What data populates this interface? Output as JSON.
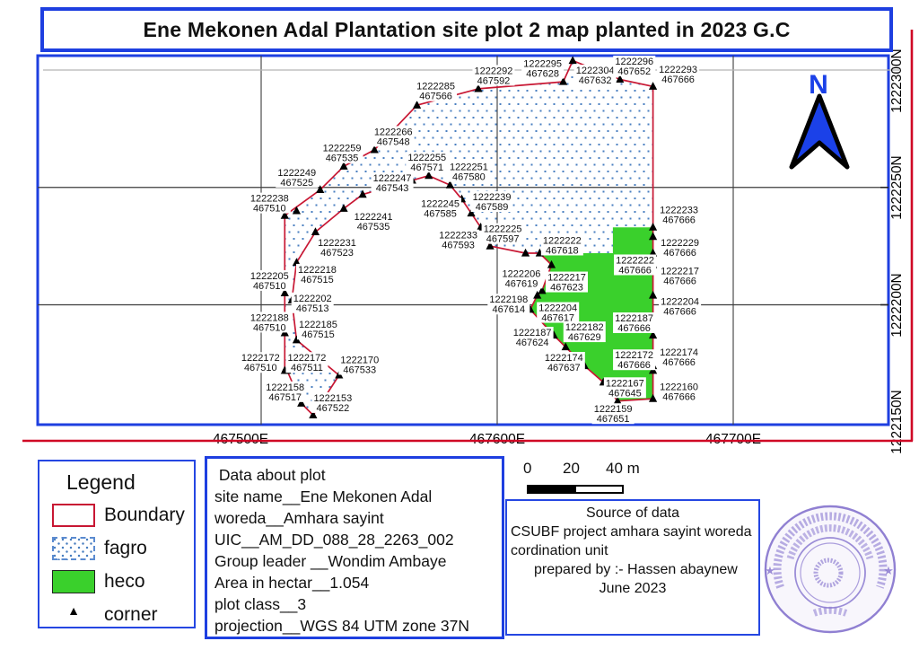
{
  "title": "Ene Mekonen Adal Plantation site plot 2 map planted in 2023 G.C",
  "map": {
    "x_axis_ticks": [
      {
        "label": "467500E",
        "e": 467500,
        "label_dx": -23
      },
      {
        "label": "467600E",
        "e": 467600,
        "label_dx": 0
      },
      {
        "label": "467700E",
        "e": 467700,
        "label_dx": 0
      }
    ],
    "y_axis_ticks": [
      {
        "label": "1222300N",
        "n": 1222300,
        "label_cy": 90
      },
      {
        "label": "1222250N",
        "n": 1222250,
        "label_cy": 209
      },
      {
        "label": "1222200N",
        "n": 1222200,
        "label_cy": 340
      },
      {
        "label": "1222150N",
        "n": 1222150,
        "label_cy": 470
      }
    ],
    "north_arrow_label": "N",
    "corner_labels": [
      [
        1222238,
        467510,
        -17,
        -14
      ],
      [
        1222249,
        467525,
        -26,
        -14
      ],
      [
        1222259,
        467535,
        -2,
        -15
      ],
      [
        1222266,
        467548,
        21,
        -15
      ],
      [
        1222285,
        467566,
        21,
        -16
      ],
      [
        1222292,
        467592,
        17,
        -15
      ],
      [
        1222295,
        467628,
        -23,
        -15
      ],
      [
        1222304,
        467632,
        25,
        16
      ],
      [
        1222296,
        467652,
        16,
        -15
      ],
      [
        1222293,
        467666,
        28,
        -14
      ],
      [
        1222233,
        467666,
        29,
        -14
      ],
      [
        1222229,
        467666,
        30,
        12
      ],
      [
        1222222,
        467666,
        -20,
        13
      ],
      [
        1222217,
        467666,
        30,
        12
      ],
      [
        1222204,
        467666,
        30,
        12
      ],
      [
        1222187,
        467666,
        -21,
        -14
      ],
      [
        1222174,
        467666,
        29,
        -10
      ],
      [
        1222172,
        467666,
        -21,
        -12
      ],
      [
        1222160,
        467666,
        29,
        -8
      ],
      [
        1222159,
        467651,
        -5,
        14
      ],
      [
        1222167,
        467645,
        24,
        6
      ],
      [
        1222174,
        467637,
        -23,
        -4
      ],
      [
        1222182,
        467629,
        21,
        -17
      ],
      [
        1222187,
        467624,
        -24,
        2
      ],
      [
        1222198,
        467614,
        -24,
        -6
      ],
      [
        1222204,
        467617,
        23,
        19
      ],
      [
        1222206,
        467619,
        -23,
        -14
      ],
      [
        1222217,
        467623,
        17,
        19
      ],
      [
        1222222,
        467618,
        25,
        -9
      ],
      [
        1222225,
        467597,
        14,
        -14
      ],
      [
        1222233,
        467593,
        -25,
        14
      ],
      [
        1222239,
        467589,
        23,
        -13
      ],
      [
        1222245,
        467585,
        -24,
        10
      ],
      [
        1222251,
        467580,
        21,
        -15
      ],
      [
        1222255,
        467571,
        -2,
        -15
      ],
      [
        1222247,
        467543,
        33,
        -13
      ],
      [
        1222241,
        467535,
        33,
        14
      ],
      [
        1222231,
        467523,
        24,
        17
      ],
      [
        1222218,
        467515,
        23,
        13
      ],
      [
        1222205,
        467510,
        -17,
        -14
      ],
      [
        1222202,
        467513,
        23,
        3
      ],
      [
        1222188,
        467510,
        -17,
        -12
      ],
      [
        1222185,
        467515,
        24,
        -12
      ],
      [
        1222172,
        467510,
        -27,
        -9
      ],
      [
        1222172,
        467511,
        22,
        -9
      ],
      [
        1222170,
        467533,
        23,
        -12
      ],
      [
        1222158,
        467517,
        -18,
        -13
      ],
      [
        1222153,
        467522,
        22,
        -14
      ]
    ],
    "extra_corner_triangles_en": [
      [
        467564,
        1222253
      ],
      [
        467612,
        1222222
      ],
      [
        467515,
        1222240
      ]
    ],
    "boundary_vertices_en": [
      [
        467510,
        1222238
      ],
      [
        467525,
        1222249
      ],
      [
        467535,
        1222259
      ],
      [
        467548,
        1222266
      ],
      [
        467566,
        1222285
      ],
      [
        467592,
        1222292
      ],
      [
        467628,
        1222295
      ],
      [
        467632,
        1222304
      ],
      [
        467652,
        1222296
      ],
      [
        467666,
        1222293
      ],
      [
        467666,
        1222233
      ],
      [
        467666,
        1222229
      ],
      [
        467666,
        1222222
      ],
      [
        467666,
        1222217
      ],
      [
        467666,
        1222204
      ],
      [
        467666,
        1222187
      ],
      [
        467666,
        1222174
      ],
      [
        467666,
        1222172
      ],
      [
        467666,
        1222160
      ],
      [
        467651,
        1222159
      ],
      [
        467645,
        1222167
      ],
      [
        467637,
        1222174
      ],
      [
        467629,
        1222182
      ],
      [
        467624,
        1222187
      ],
      [
        467614,
        1222198
      ],
      [
        467617,
        1222204
      ],
      [
        467619,
        1222206
      ],
      [
        467623,
        1222217
      ],
      [
        467618,
        1222222
      ],
      [
        467612,
        1222222
      ],
      [
        467597,
        1222225
      ],
      [
        467593,
        1222233
      ],
      [
        467589,
        1222239
      ],
      [
        467585,
        1222245
      ],
      [
        467580,
        1222251
      ],
      [
        467571,
        1222255
      ],
      [
        467564,
        1222253
      ],
      [
        467543,
        1222247
      ],
      [
        467535,
        1222241
      ],
      [
        467523,
        1222231
      ],
      [
        467515,
        1222218
      ],
      [
        467513,
        1222202
      ],
      [
        467515,
        1222185
      ],
      [
        467533,
        1222170
      ],
      [
        467522,
        1222153
      ],
      [
        467517,
        1222158
      ],
      [
        467511,
        1222172
      ],
      [
        467510,
        1222172
      ],
      [
        467510,
        1222188
      ],
      [
        467510,
        1222205
      ]
    ],
    "heco_vertices_en": [
      [
        467618,
        1222222
      ],
      [
        467649,
        1222222
      ],
      [
        467649,
        1222233
      ],
      [
        467666,
        1222233
      ],
      [
        467666,
        1222160
      ],
      [
        467651,
        1222159
      ],
      [
        467645,
        1222167
      ],
      [
        467637,
        1222174
      ],
      [
        467629,
        1222182
      ],
      [
        467624,
        1222187
      ],
      [
        467614,
        1222198
      ],
      [
        467617,
        1222204
      ],
      [
        467619,
        1222206
      ],
      [
        467623,
        1222217
      ]
    ],
    "colors": {
      "frame_blue": "#1e3fe0",
      "boundary_red": "#c81733",
      "fagro_dot_blue": "#4a7fc0",
      "heco_green": "#3ad02c",
      "north_blue": "#1b41e8",
      "page_line_red": "#cf0524",
      "grid_dark": "#3c3c3c",
      "grid_light": "#b5b5b5"
    }
  },
  "legend": {
    "title": "Legend",
    "items": [
      {
        "label": "Boundary",
        "type": "boundary"
      },
      {
        "label": "fagro",
        "type": "fagro"
      },
      {
        "label": "heco",
        "type": "heco"
      },
      {
        "label": "corner",
        "type": "corner"
      }
    ],
    "corner_glyph": "▲"
  },
  "data_about_plot": {
    "lines": [
      " Data about plot",
      "site name__Ene Mekonen Adal",
      "woreda__Amhara sayint",
      "UIC__AM_DD_088_28_2263_002",
      "Group leader __Wondim Ambaye",
      "Area in hectar__1.054",
      "plot class__3",
      "projection__WGS 84 UTM zone 37N"
    ]
  },
  "scale_bar": {
    "labels": [
      "0",
      "20",
      "40 m"
    ]
  },
  "source_of_data": {
    "lines": [
      "Source of data",
      "CSUBF project amhara sayint woreda",
      "cordination unit",
      "",
      "prepared by :- Hassen abaynew",
      "June 2023"
    ]
  },
  "stamp": {
    "kind": "circular purple ink stamp with Amharic script",
    "color": "#8b7ad0"
  }
}
